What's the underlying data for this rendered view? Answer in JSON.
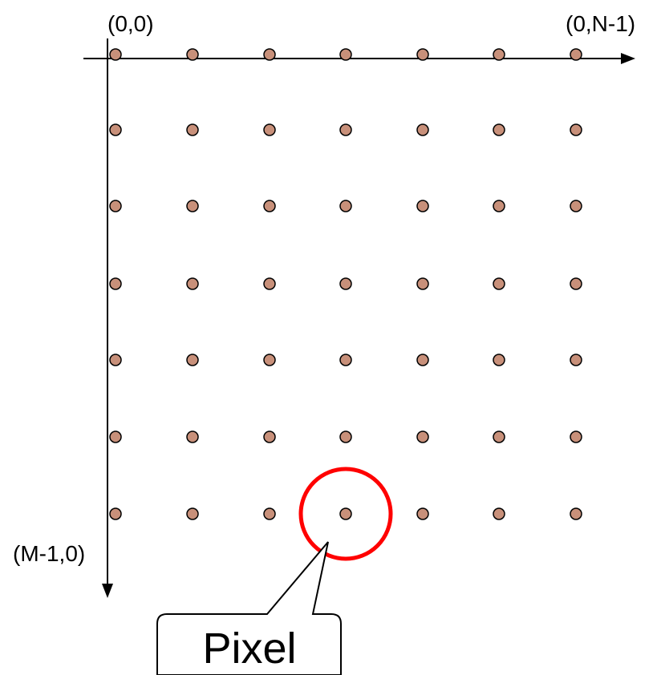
{
  "labels": {
    "origin": "(0,0)",
    "top_right": "(0,N-1)",
    "bottom_left": "(M-1,0)"
  },
  "grid": {
    "rows": 7,
    "cols": 7,
    "highlight": {
      "row": 6,
      "col": 3
    }
  },
  "callout": {
    "text": "Pixel"
  },
  "colors": {
    "dot_fill": "#c8907a",
    "dot_stroke": "#000000",
    "axis": "#000000",
    "highlight_ring": "#ff0000",
    "callout_stroke": "#000000"
  }
}
